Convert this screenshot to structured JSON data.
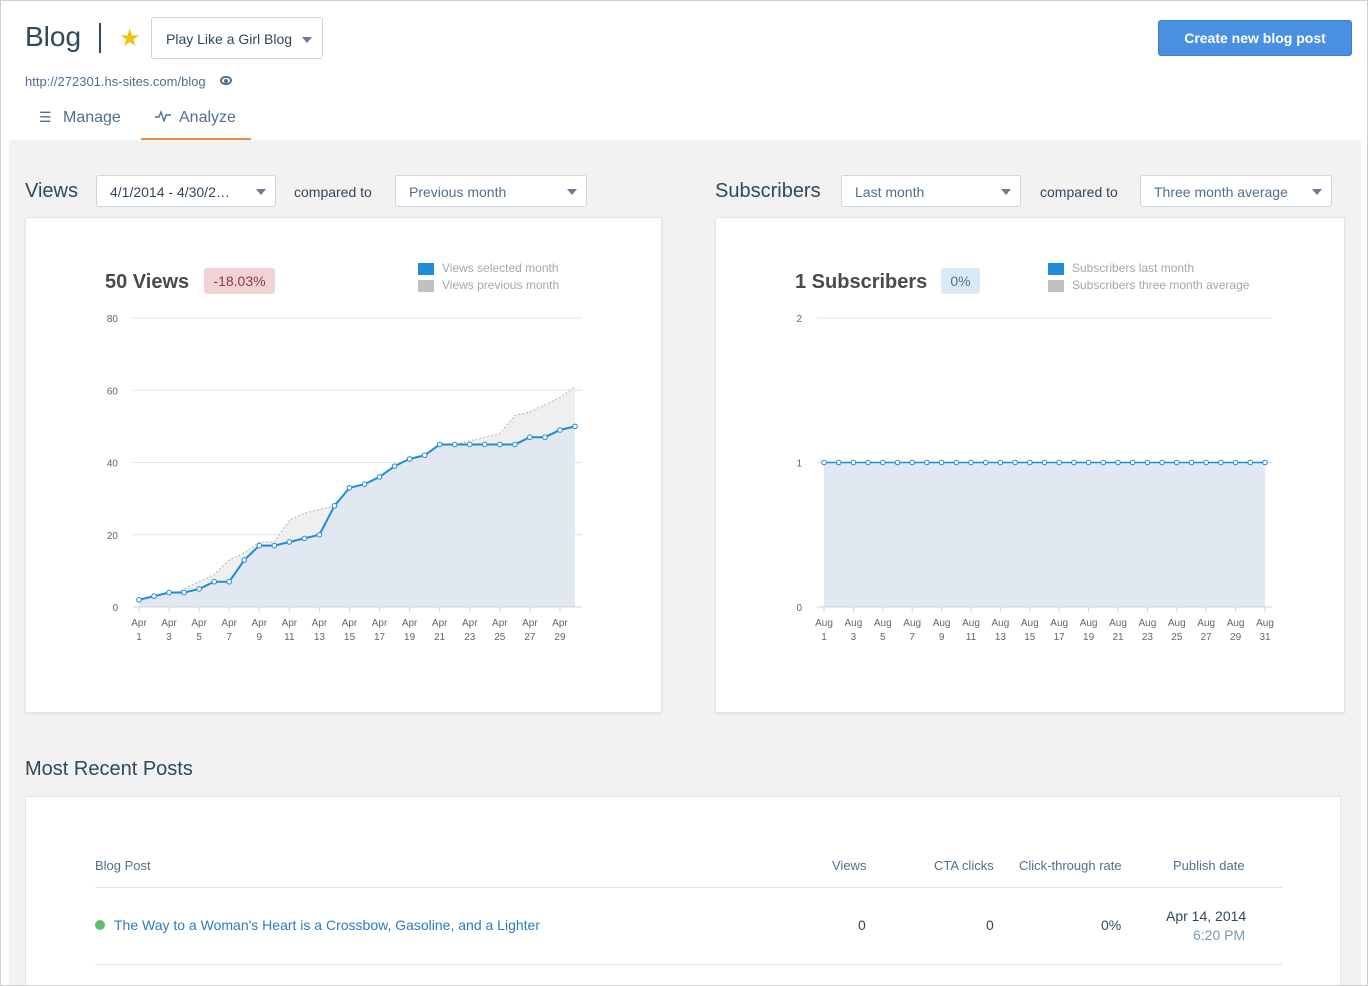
{
  "header": {
    "title": "Blog",
    "blog_select": "Play Like a Girl Blog",
    "url": "http://272301.hs-sites.com/blog",
    "create_button": "Create new blog post"
  },
  "tabs": [
    {
      "label": "Manage",
      "icon": "list-icon",
      "active": false
    },
    {
      "label": "Analyze",
      "icon": "pulse-icon",
      "active": true
    }
  ],
  "views": {
    "section_title": "Views",
    "date_range": "4/1/2014 - 4/30/2…",
    "compared_to_label": "compared to",
    "compare_select": "Previous month",
    "metric": "50 Views",
    "change_badge": "-18.03%",
    "legend": [
      "Views selected month",
      "Views previous month"
    ]
  },
  "subscribers": {
    "section_title": "Subscribers",
    "period_select": "Last month",
    "compared_to_label": "compared to",
    "compare_select": "Three month average",
    "metric": "1 Subscribers",
    "change_badge": "0%",
    "legend": [
      "Subscribers last month",
      "Subscribers three month average"
    ]
  },
  "colors": {
    "accent": "#4a90e2",
    "series_blue": "#1f8dd6",
    "series_gray": "#c0c0c0",
    "area_blue": "#dfe7f0",
    "area_gray": "#efefef",
    "tab_underline": "#e78a3c"
  },
  "chart_data": [
    {
      "type": "line",
      "title": "50 Views",
      "ylim": [
        0,
        80
      ],
      "yticks": [
        0,
        20,
        40,
        60,
        80
      ],
      "x_tick_labels": [
        "Apr 1",
        "Apr 3",
        "Apr 5",
        "Apr 7",
        "Apr 9",
        "Apr 11",
        "Apr 13",
        "Apr 15",
        "Apr 17",
        "Apr 19",
        "Apr 21",
        "Apr 23",
        "Apr 25",
        "Apr 27",
        "Apr 29"
      ],
      "x": [
        1,
        2,
        3,
        4,
        5,
        6,
        7,
        8,
        9,
        10,
        11,
        12,
        13,
        14,
        15,
        16,
        17,
        18,
        19,
        20,
        21,
        22,
        23,
        24,
        25,
        26,
        27,
        28,
        29,
        30
      ],
      "grid": true,
      "legend_position": "top-right",
      "series": [
        {
          "name": "Views selected month",
          "values": [
            2,
            3,
            4,
            4,
            5,
            7,
            7,
            13,
            17,
            17,
            18,
            19,
            20,
            28,
            33,
            34,
            36,
            39,
            41,
            42,
            45,
            45,
            45,
            45,
            45,
            45,
            47,
            47,
            49,
            50
          ]
        },
        {
          "name": "Views previous month",
          "values": [
            1,
            2,
            3,
            5,
            7,
            9,
            13,
            15,
            18,
            18,
            24,
            26,
            27,
            28,
            29,
            31,
            34,
            37,
            39,
            40,
            43,
            45,
            46,
            47,
            48,
            53,
            54,
            56,
            58,
            61
          ]
        }
      ]
    },
    {
      "type": "line",
      "title": "1 Subscribers",
      "ylim": [
        0,
        2
      ],
      "yticks": [
        0,
        1,
        2
      ],
      "x_tick_labels": [
        "Aug 1",
        "Aug 3",
        "Aug 5",
        "Aug 7",
        "Aug 9",
        "Aug 11",
        "Aug 13",
        "Aug 15",
        "Aug 17",
        "Aug 19",
        "Aug 21",
        "Aug 23",
        "Aug 25",
        "Aug 27",
        "Aug 29",
        "Aug 31"
      ],
      "x": [
        1,
        2,
        3,
        4,
        5,
        6,
        7,
        8,
        9,
        10,
        11,
        12,
        13,
        14,
        15,
        16,
        17,
        18,
        19,
        20,
        21,
        22,
        23,
        24,
        25,
        26,
        27,
        28,
        29,
        30,
        31
      ],
      "grid": true,
      "legend_position": "top-right",
      "series": [
        {
          "name": "Subscribers last month",
          "values": [
            1,
            1,
            1,
            1,
            1,
            1,
            1,
            1,
            1,
            1,
            1,
            1,
            1,
            1,
            1,
            1,
            1,
            1,
            1,
            1,
            1,
            1,
            1,
            1,
            1,
            1,
            1,
            1,
            1,
            1,
            1
          ]
        },
        {
          "name": "Subscribers three month average",
          "values": [
            1,
            1,
            1,
            1,
            1,
            1,
            1,
            1,
            1,
            1,
            1,
            1,
            1,
            1,
            1,
            1,
            1,
            1,
            1,
            1,
            1,
            1,
            1,
            1,
            1,
            1,
            1,
            1,
            1,
            1,
            1
          ]
        }
      ]
    }
  ],
  "posts": {
    "section_title": "Most Recent Posts",
    "columns": [
      "Blog Post",
      "Views",
      "CTA clicks",
      "Click-through rate",
      "Publish date"
    ],
    "rows": [
      {
        "title": "The Way to a Woman's Heart is a Crossbow, Gasoline, and a Lighter",
        "views": "0",
        "cta_clicks": "0",
        "ctr": "0%",
        "publish_date": "Apr 14, 2014",
        "publish_time": "6:20 PM"
      }
    ]
  }
}
